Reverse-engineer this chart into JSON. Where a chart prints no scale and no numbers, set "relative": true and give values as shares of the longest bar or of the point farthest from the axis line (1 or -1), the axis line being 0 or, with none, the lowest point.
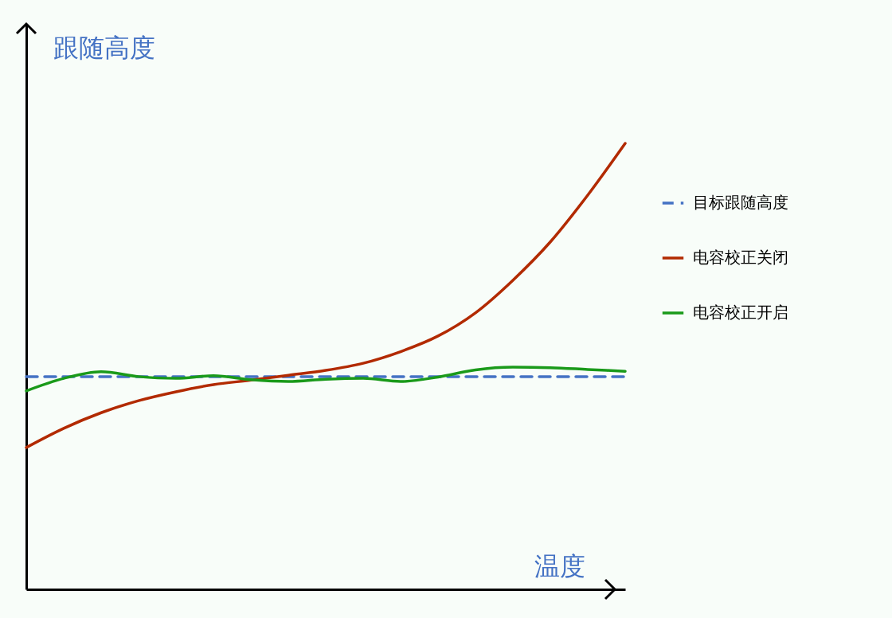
{
  "chart_data": {
    "type": "line",
    "xlabel": "温度",
    "ylabel": "跟随高度",
    "relative": true,
    "legend": "right",
    "categories": [
      null,
      null,
      null,
      null,
      null,
      null,
      null,
      null,
      null,
      null,
      null,
      null,
      null,
      null,
      null,
      null,
      null
    ],
    "series": [
      {
        "name": "目标跟随高度",
        "color": "#4472c4",
        "line_style": "dashed",
        "values": [
          0.477,
          0.477,
          0.477,
          0.477,
          0.477,
          0.477,
          0.477,
          0.477,
          0.477,
          0.477,
          0.477,
          0.477,
          0.477,
          0.477,
          0.477,
          0.477,
          0.477
        ]
      },
      {
        "name": "电容校正关闭",
        "color": "#b22a00",
        "line_style": "solid",
        "values": [
          0.318,
          0.361,
          0.396,
          0.423,
          0.443,
          0.459,
          0.469,
          0.48,
          0.491,
          0.507,
          0.533,
          0.568,
          0.62,
          0.693,
          0.779,
          0.884,
          1.0
        ]
      },
      {
        "name": "电容校正开启",
        "color": "#1a9a1a",
        "line_style": "solid",
        "values": [
          0.445,
          0.473,
          0.488,
          0.477,
          0.473,
          0.479,
          0.47,
          0.466,
          0.471,
          0.473,
          0.466,
          0.476,
          0.492,
          0.498,
          0.497,
          0.493,
          0.489
        ]
      }
    ]
  }
}
